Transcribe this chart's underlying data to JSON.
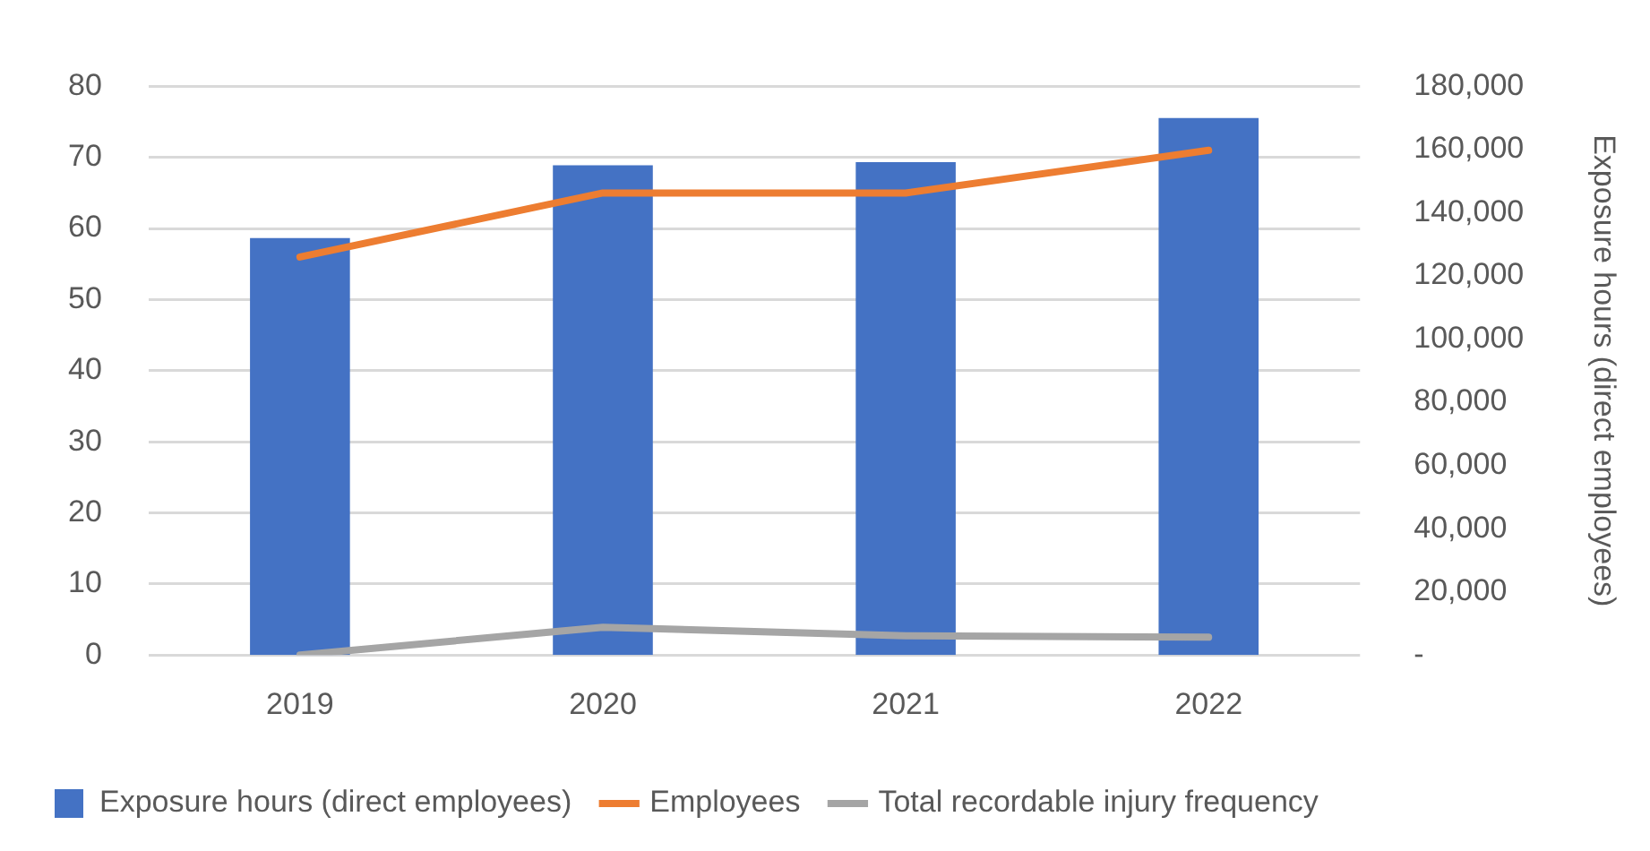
{
  "chart_data": {
    "type": "bar",
    "categories": [
      "2019",
      "2020",
      "2021",
      "2022"
    ],
    "y2label": "Exposure hours (direct employees)",
    "series": [
      {
        "name": "Exposure hours (direct employees)",
        "axis": "y2",
        "color": "#4472c4",
        "values": [
          132000,
          155000,
          156000,
          170000
        ]
      },
      {
        "name": "Employees",
        "type": "line",
        "color": "#ed7d31",
        "values": [
          56,
          65,
          65,
          71
        ]
      },
      {
        "name": "Total recordable injury frequency",
        "type": "line",
        "color": "#a5a5a5",
        "values": [
          0,
          3.9,
          2.7,
          2.5
        ]
      }
    ],
    "ylim": [
      0,
      80
    ],
    "yticks": [
      0,
      10,
      20,
      30,
      40,
      50,
      60,
      70,
      80
    ],
    "y2lim": [
      0,
      180000
    ],
    "y2ticks": [
      {
        "value": 0,
        "label": "-"
      },
      {
        "value": 20000,
        "label": "20,000"
      },
      {
        "value": 40000,
        "label": "40,000"
      },
      {
        "value": 60000,
        "label": "60,000"
      },
      {
        "value": 80000,
        "label": "80,000"
      },
      {
        "value": 100000,
        "label": "100,000"
      },
      {
        "value": 120000,
        "label": "120,000"
      },
      {
        "value": 140000,
        "label": "140,000"
      },
      {
        "value": 160000,
        "label": "160,000"
      },
      {
        "value": 180000,
        "label": "180,000"
      }
    ],
    "grid": "y",
    "legend": "bottom",
    "marker": "none",
    "line_style": "solid"
  }
}
